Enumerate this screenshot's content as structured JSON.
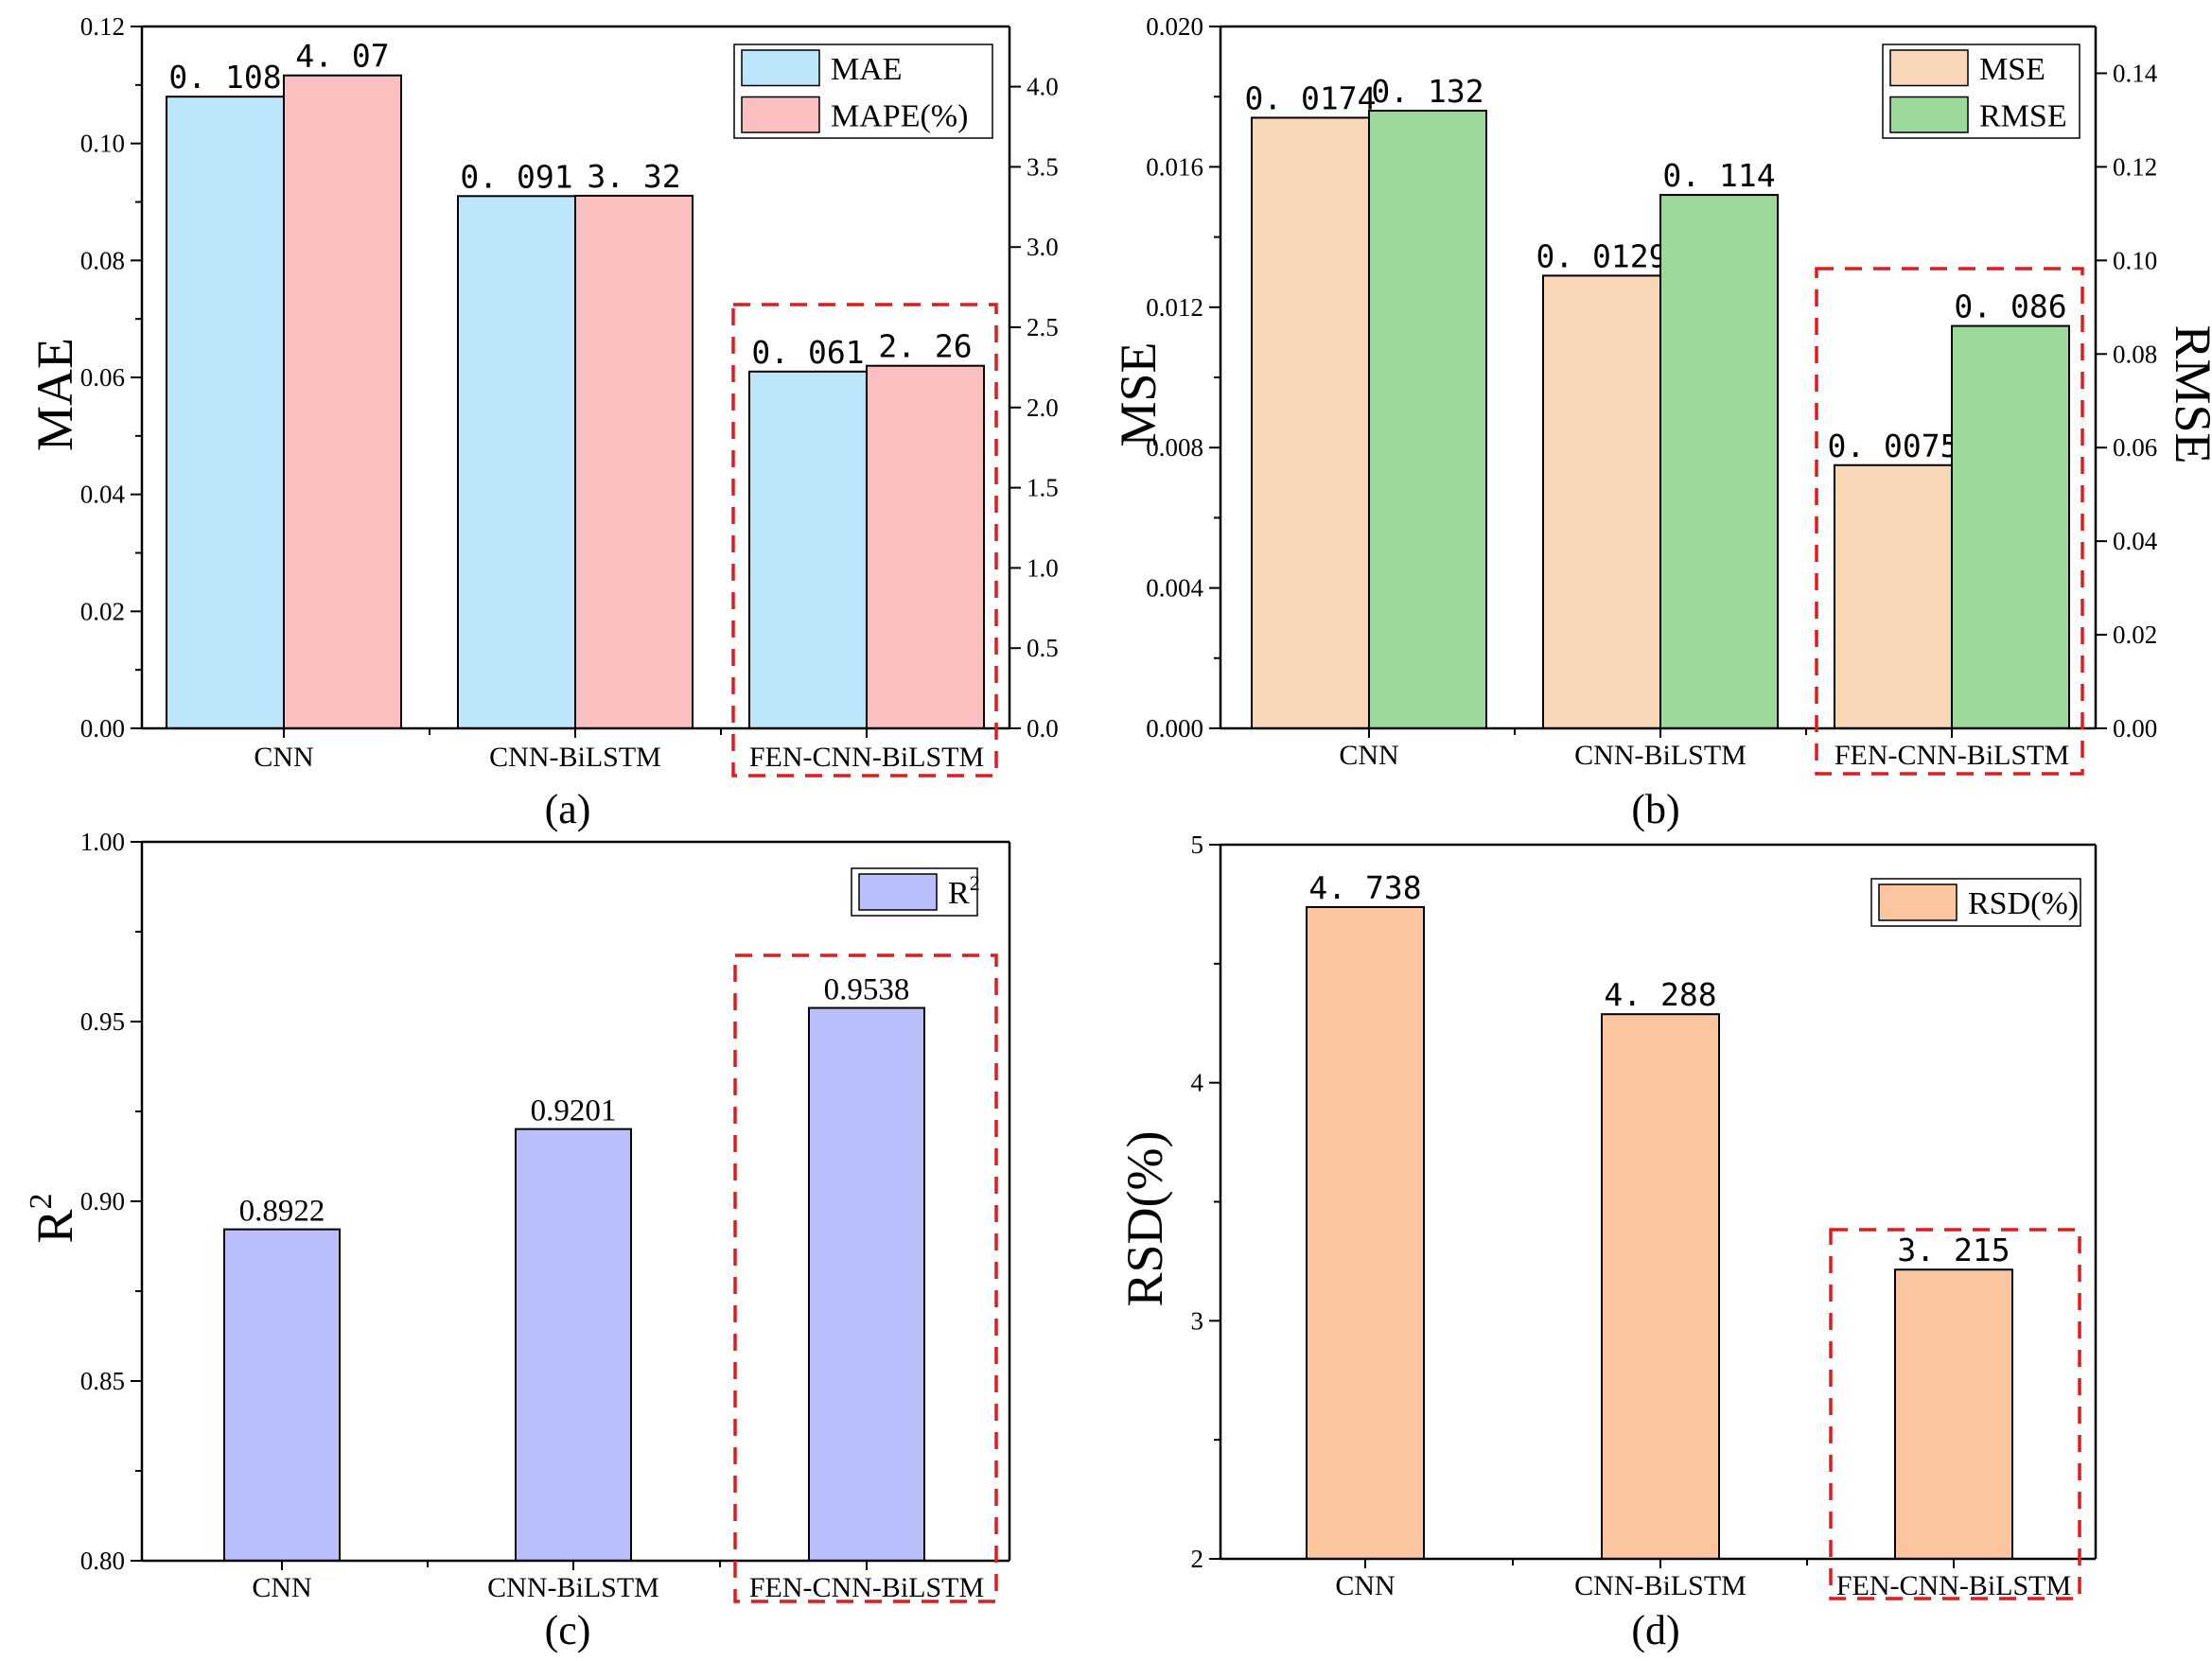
{
  "chart_data": [
    {
      "type": "bar",
      "panel": "(a)",
      "categories": [
        "CNN",
        "CNN-BiLSTM",
        "FEN-CNN-BiLSTM"
      ],
      "highlight_category": "FEN-CNN-BiLSTM",
      "ylabel": "MAE",
      "ylim": [
        0,
        0.12
      ],
      "yticks": [
        "0.00",
        "0.02",
        "0.04",
        "0.06",
        "0.08",
        "0.10",
        "0.12"
      ],
      "y2lim": [
        0,
        4.375
      ],
      "y2ticks": [
        "0.0",
        "0.5",
        "1.0",
        "1.5",
        "2.0",
        "2.5",
        "3.0",
        "3.5",
        "4.0"
      ],
      "legend_position": "top-right",
      "series": [
        {
          "name": "MAE",
          "axis": "left",
          "color": "#bce6fb",
          "values": [
            0.108,
            0.091,
            0.061
          ],
          "labels": [
            "0. 108",
            "0. 091",
            "0. 061"
          ]
        },
        {
          "name": "MAPE(%)",
          "axis": "right",
          "color": "#fcbfc0",
          "values": [
            4.07,
            3.32,
            2.26
          ],
          "labels": [
            "4. 07",
            "3. 32",
            "2. 26"
          ]
        }
      ]
    },
    {
      "type": "bar",
      "panel": "(b)",
      "categories": [
        "CNN",
        "CNN-BiLSTM",
        "FEN-CNN-BiLSTM"
      ],
      "highlight_category": "FEN-CNN-BiLSTM",
      "ylabel": "MSE",
      "y2label": "RMSE",
      "ylim": [
        0,
        0.02
      ],
      "yticks": [
        "0.000",
        "0.004",
        "0.008",
        "0.012",
        "0.016",
        "0.020"
      ],
      "y2lim": [
        0,
        0.15
      ],
      "y2ticks": [
        "0.00",
        "0.02",
        "0.04",
        "0.06",
        "0.08",
        "0.10",
        "0.12",
        "0.14"
      ],
      "legend_position": "top-right",
      "series": [
        {
          "name": "MSE",
          "axis": "left",
          "color": "#f8d6b6",
          "values": [
            0.0174,
            0.0129,
            0.0075
          ],
          "labels": [
            "0. 0174",
            "0. 0129",
            "0. 0075"
          ]
        },
        {
          "name": "RMSE",
          "axis": "right",
          "color": "#9cd99a",
          "values": [
            0.132,
            0.114,
            0.086
          ],
          "labels": [
            "0. 132",
            "0. 114",
            "0. 086"
          ]
        }
      ]
    },
    {
      "type": "bar",
      "panel": "(c)",
      "categories": [
        "CNN",
        "CNN-BiLSTM",
        "FEN-CNN-BiLSTM"
      ],
      "highlight_category": "FEN-CNN-BiLSTM",
      "ylabel": "R",
      "ylabel_sup": "2",
      "ylim": [
        0.8,
        1.0
      ],
      "yticks": [
        "0.80",
        "0.85",
        "0.90",
        "0.95",
        "1.00"
      ],
      "legend_position": "top-right",
      "series": [
        {
          "name": "R",
          "name_sup": "2",
          "axis": "left",
          "color": "#b8bffb",
          "values": [
            0.8922,
            0.9201,
            0.9538
          ],
          "labels": [
            "0.8922",
            "0.9201",
            "0.9538"
          ]
        }
      ]
    },
    {
      "type": "bar",
      "panel": "(d)",
      "categories": [
        "CNN",
        "CNN-BiLSTM",
        "FEN-CNN-BiLSTM"
      ],
      "highlight_category": "FEN-CNN-BiLSTM",
      "ylabel": "RSD(%)",
      "ylim": [
        2,
        5
      ],
      "yticks": [
        "2",
        "3",
        "4",
        "5"
      ],
      "legend_position": "top-right",
      "series": [
        {
          "name": "RSD(%)",
          "axis": "left",
          "color": "#fbc5a0",
          "values": [
            4.738,
            4.288,
            3.215
          ],
          "labels": [
            "4. 738",
            "4. 288",
            "3. 215"
          ]
        }
      ]
    }
  ],
  "colors": {
    "axis": "#000000",
    "highlight_box": "#e31a1c"
  }
}
